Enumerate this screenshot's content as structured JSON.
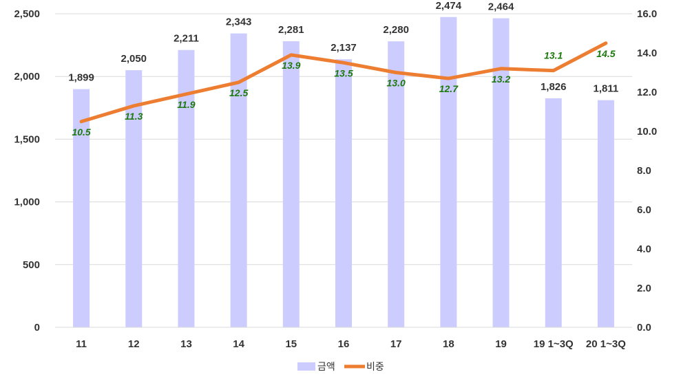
{
  "chart_data": {
    "type": "bar",
    "categories": [
      "11",
      "12",
      "13",
      "14",
      "15",
      "16",
      "17",
      "18",
      "19",
      "19 1~3Q",
      "20 1~3Q"
    ],
    "series": [
      {
        "name": "금액",
        "type": "bar",
        "axis": "left",
        "color": "#ccccff",
        "values": [
          1899,
          2050,
          2211,
          2343,
          2281,
          2137,
          2280,
          2474,
          2464,
          1826,
          1811
        ],
        "labels": [
          "1,899",
          "2,050",
          "2,211",
          "2,343",
          "2,281",
          "2,137",
          "2,280",
          "2,474",
          "2,464",
          "1,826",
          "1,811"
        ]
      },
      {
        "name": "비중",
        "type": "line",
        "axis": "right",
        "color": "#ed7d31",
        "label_color": "#1e7a0e",
        "values": [
          10.5,
          11.3,
          11.9,
          12.5,
          13.9,
          13.5,
          13.0,
          12.7,
          13.2,
          13.1,
          14.5
        ],
        "labels": [
          "10.5",
          "11.3",
          "11.9",
          "12.5",
          "13.9",
          "13.5",
          "13.0",
          "12.7",
          "13.2",
          "13.1",
          "14.5"
        ]
      }
    ],
    "y_left": {
      "min": 0,
      "max": 2500,
      "ticks": [
        0,
        500,
        1000,
        1500,
        2000,
        2500
      ],
      "tick_labels": [
        "0",
        "500",
        "1,000",
        "1,500",
        "2,000",
        "2,500"
      ]
    },
    "y_right": {
      "min": 0,
      "max": 16,
      "ticks": [
        0,
        2,
        4,
        6,
        8,
        10,
        12,
        14,
        16
      ],
      "tick_labels": [
        "0.0",
        "2.0",
        "4.0",
        "6.0",
        "8.0",
        "10.0",
        "12.0",
        "14.0",
        "16.0"
      ]
    },
    "title": "",
    "xlabel": "",
    "ylabel": "",
    "grid": true,
    "legend": {
      "position": "bottom",
      "entries": [
        "금액",
        "비중"
      ]
    }
  }
}
